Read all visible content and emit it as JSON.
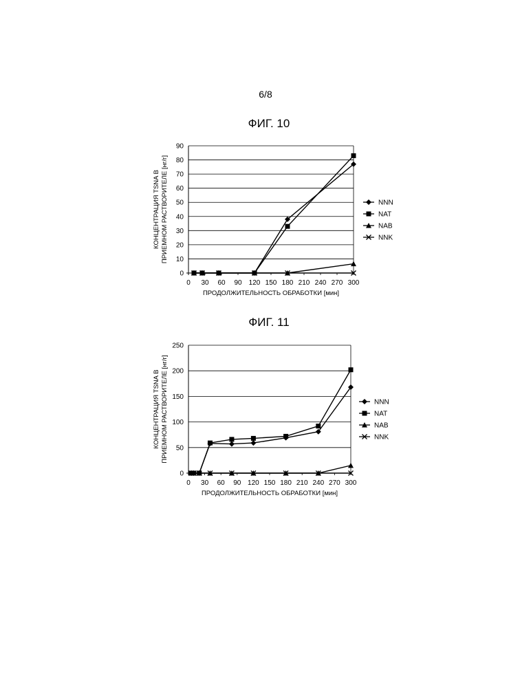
{
  "page_number": "6/8",
  "chart_data": [
    {
      "figure_title": "ФИГ. 10",
      "type": "line",
      "ylabel_line1": "КОНЦЕНТРАЦИЯ TSNA В",
      "ylabel_line2": "ПРИЕМНОМ РАСТВОРИТЕЛЕ [нг/г]",
      "xlabel": "ПРОДОЛЖИТЕЛЬНОСТЬ ОБРАБОТКИ [мин]",
      "xlim": [
        0,
        300
      ],
      "ylim": [
        0,
        90
      ],
      "xticks": [
        0,
        30,
        60,
        90,
        120,
        150,
        180,
        210,
        240,
        270,
        300
      ],
      "yticks": [
        0,
        10,
        20,
        30,
        40,
        50,
        60,
        70,
        80,
        90
      ],
      "grid": "horizontal",
      "legend_position": "right",
      "series": [
        {
          "name": "NNN",
          "marker": "diamond",
          "x": [
            10,
            25,
            55,
            120,
            180,
            300
          ],
          "y": [
            0,
            0,
            0,
            0,
            38,
            77
          ]
        },
        {
          "name": "NAT",
          "marker": "square",
          "x": [
            10,
            25,
            55,
            120,
            180,
            300
          ],
          "y": [
            0,
            0,
            0,
            0,
            33,
            83
          ]
        },
        {
          "name": "NAB",
          "marker": "triangle",
          "x": [
            10,
            25,
            55,
            120,
            180,
            300
          ],
          "y": [
            0,
            0,
            0,
            0,
            0,
            6.5
          ]
        },
        {
          "name": "NNK",
          "marker": "x",
          "x": [
            10,
            25,
            55,
            120,
            180,
            300
          ],
          "y": [
            0,
            0,
            0,
            0,
            0,
            0
          ]
        }
      ]
    },
    {
      "figure_title": "ФИГ. 11",
      "type": "line",
      "ylabel_line1": "КОНЦЕНТРАЦИЯ TSNA В",
      "ylabel_line2": "ПРИЕМНОМ РАСТВОРИТЕЛЕ [нг/г]",
      "xlabel": "ПРОДОЛЖИТЕЛЬНОСТЬ ОБРАБОТКИ [мин]",
      "xlim": [
        0,
        300
      ],
      "ylim": [
        0,
        250
      ],
      "xticks": [
        0,
        30,
        60,
        90,
        120,
        150,
        180,
        210,
        240,
        270,
        300
      ],
      "yticks": [
        0,
        50,
        100,
        150,
        200,
        250
      ],
      "grid": "horizontal",
      "legend_position": "right",
      "series": [
        {
          "name": "NNN",
          "marker": "diamond",
          "x": [
            5,
            10,
            20,
            40,
            80,
            120,
            180,
            240,
            300
          ],
          "y": [
            0,
            0,
            0,
            58,
            57,
            59,
            69,
            81,
            168
          ]
        },
        {
          "name": "NAT",
          "marker": "square",
          "x": [
            5,
            10,
            20,
            40,
            80,
            120,
            180,
            240,
            300
          ],
          "y": [
            0,
            0,
            0,
            59,
            66,
            68,
            72,
            92,
            202
          ]
        },
        {
          "name": "NAB",
          "marker": "triangle",
          "x": [
            5,
            10,
            20,
            40,
            80,
            120,
            180,
            240,
            300
          ],
          "y": [
            0,
            0,
            0,
            0,
            0,
            0,
            0,
            0,
            15
          ]
        },
        {
          "name": "NNK",
          "marker": "x",
          "x": [
            5,
            10,
            20,
            40,
            80,
            120,
            180,
            240,
            300
          ],
          "y": [
            0,
            0,
            0,
            0,
            0,
            0,
            0,
            0,
            0
          ]
        }
      ]
    }
  ]
}
